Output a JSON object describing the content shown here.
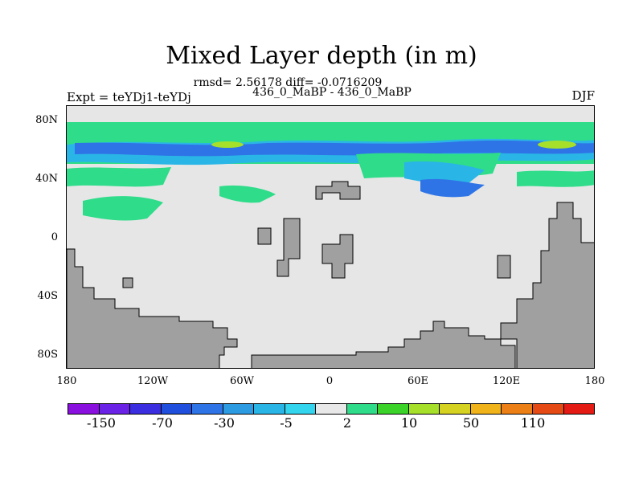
{
  "title": "Mixed Layer depth (in m)",
  "subtitle_stats": "rmsd= 2.56178 diff= -0.0716209",
  "subtitle_runs": "436_0_MaBP - 436_0_MaBP",
  "left_label": "Expt = teYDj1-teYDj",
  "right_label": "DJF",
  "y_ticks": [
    "80N",
    "40N",
    "0",
    "40S",
    "80S"
  ],
  "x_ticks": [
    "180",
    "120W",
    "60W",
    "0",
    "60E",
    "120E",
    "180"
  ],
  "colorbar": {
    "colors": [
      "#8a10e0",
      "#6a22e6",
      "#3b2de0",
      "#1f4fdc",
      "#2f74e6",
      "#2d9be2",
      "#29b6e6",
      "#33d4ee",
      "#e8e8e8",
      "#2fdc8a",
      "#3bd22a",
      "#a6e02a",
      "#d6d221",
      "#f0b31a",
      "#ec7f16",
      "#e64a14",
      "#e41a14"
    ],
    "labels": [
      "-150",
      "-70",
      "-30",
      "-5",
      "2",
      "10",
      "50",
      "110"
    ]
  },
  "colors": {
    "land": "#a0a0a0",
    "ocean_neutral": "#e6e6e6",
    "green": "#2fdc8a",
    "cyan": "#29b6e6",
    "blue": "#2f74e6",
    "yellow_green": "#a6e02a"
  }
}
